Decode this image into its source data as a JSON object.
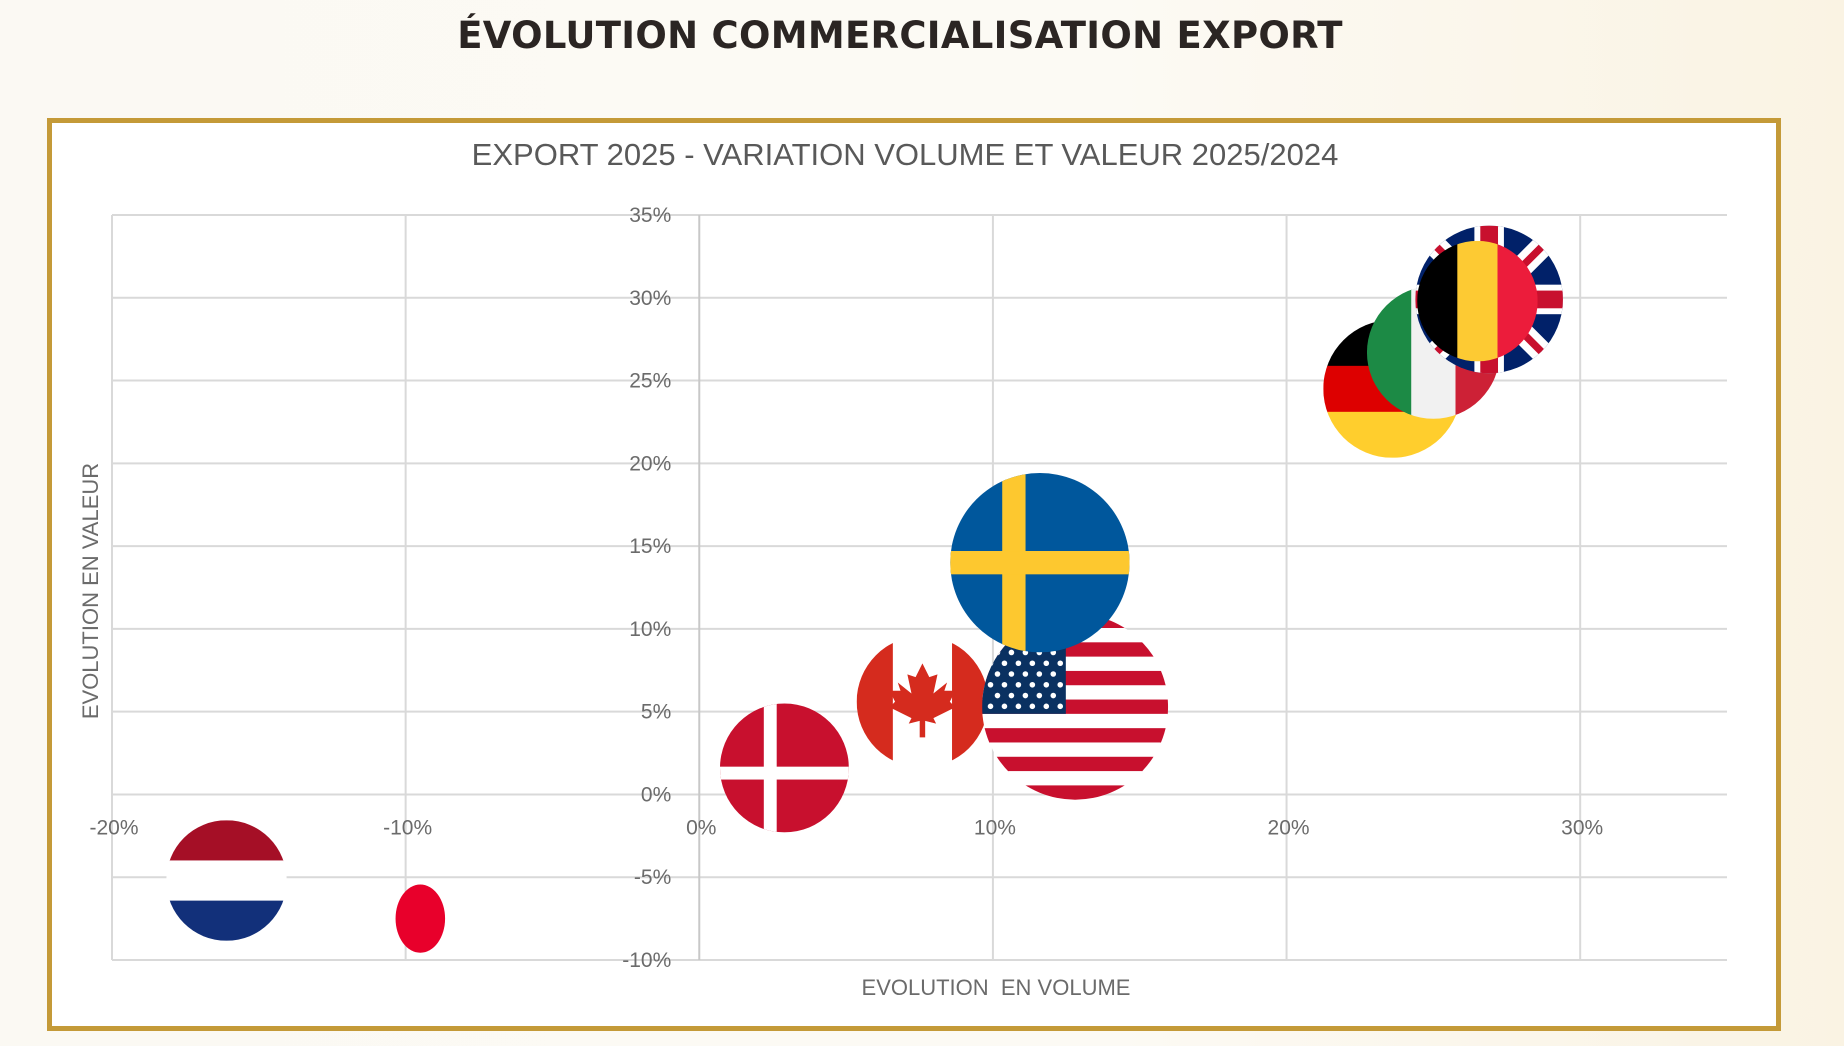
{
  "page": {
    "heading": "ÉVOLUTION COMMERCIALISATION EXPORT",
    "frame_color": "#C49A38"
  },
  "chart_data": {
    "type": "scatter",
    "subtype": "bubble",
    "title": "EXPORT 2025 - VARIATION VOLUME ET VALEUR 2025/2024",
    "xlabel": "EVOLUTION  EN VOLUME",
    "ylabel": "EVOLUTION EN VALEUR",
    "xlim": [
      -20,
      35
    ],
    "ylim": [
      -10,
      35
    ],
    "x_ticks": [
      -20,
      -10,
      0,
      10,
      20,
      30
    ],
    "x_tick_labels": [
      "-20%",
      "-10%",
      "0%",
      "10%",
      "20%",
      "30%"
    ],
    "y_ticks": [
      -10,
      -5,
      0,
      5,
      10,
      15,
      20,
      25,
      30,
      35
    ],
    "y_tick_labels": [
      "-10%",
      "-5%",
      "0%",
      "5%",
      "10%",
      "15%",
      "20%",
      "25%",
      "30%",
      "35%"
    ],
    "grid": true,
    "legend": "none",
    "marker_style": "country flags",
    "series": [
      {
        "name": "Pays-Bas",
        "flag": "netherlands",
        "x": -16.1,
        "y": -5.2,
        "size": 0.42
      },
      {
        "name": "Japon",
        "flag": "japan",
        "x": -9.5,
        "y": -7.5,
        "size": 0.35
      },
      {
        "name": "Danemark",
        "flag": "denmark",
        "x": 2.9,
        "y": 1.6,
        "size": 0.48
      },
      {
        "name": "Canada",
        "flag": "canada",
        "x": 7.6,
        "y": 5.6,
        "size": 0.5
      },
      {
        "name": "États-Unis",
        "flag": "usa",
        "x": 12.8,
        "y": 5.3,
        "size": 1.0
      },
      {
        "name": "Suède",
        "flag": "sweden",
        "x": 11.6,
        "y": 14.0,
        "size": 0.93
      },
      {
        "name": "Allemagne",
        "flag": "germany",
        "x": 23.6,
        "y": 24.5,
        "size": 0.55
      },
      {
        "name": "Italie",
        "flag": "italy",
        "x": 25.0,
        "y": 26.7,
        "size": 0.51
      },
      {
        "name": "Royaume-Uni",
        "flag": "uk",
        "x": 26.9,
        "y": 29.9,
        "size": 0.63
      },
      {
        "name": "Belgique",
        "flag": "belgium",
        "x": 26.5,
        "y": 29.8,
        "size": 0.42
      }
    ]
  }
}
